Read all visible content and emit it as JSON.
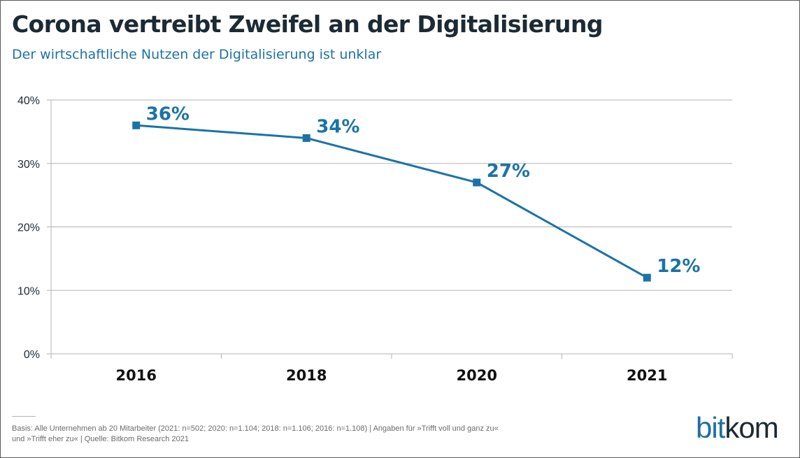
{
  "title": "Corona vertreibt Zweifel an der Digitalisierung",
  "subtitle": "Der wirtschaftliche Nutzen der Digitalisierung ist unklar",
  "footnote": {
    "line1": "Basis: Alle Unternehmen ab 20 Mitarbeiter (2021: n=502; 2020: n=1.104; 2018: n=1.106; 2016: n=1.108) | Angaben für »Trifft voll und ganz zu«",
    "line2": "und  »Trifft eher zu« | Quelle: Bitkom Research 2021"
  },
  "logo": {
    "part1": "bit",
    "part2": "kom"
  },
  "colors": {
    "series": "#1a73a8",
    "title": "#1c2a33",
    "subtitle": "#1e73a6",
    "grid": "#b3b3b3"
  },
  "chart_data": {
    "type": "line",
    "categories": [
      "2016",
      "2018",
      "2020",
      "2021"
    ],
    "series": [
      {
        "values": [
          36,
          34,
          27,
          12
        ],
        "labels": [
          "36%",
          "34%",
          "27%",
          "12%"
        ]
      }
    ],
    "ylim": [
      0,
      40
    ],
    "yticks": [
      {
        "value": 0,
        "label": "0%"
      },
      {
        "value": 10,
        "label": "10%"
      },
      {
        "value": 20,
        "label": "20%"
      },
      {
        "value": 30,
        "label": "30%"
      },
      {
        "value": 40,
        "label": "40%"
      }
    ],
    "grid": true,
    "legend": "none",
    "marker": "square"
  }
}
